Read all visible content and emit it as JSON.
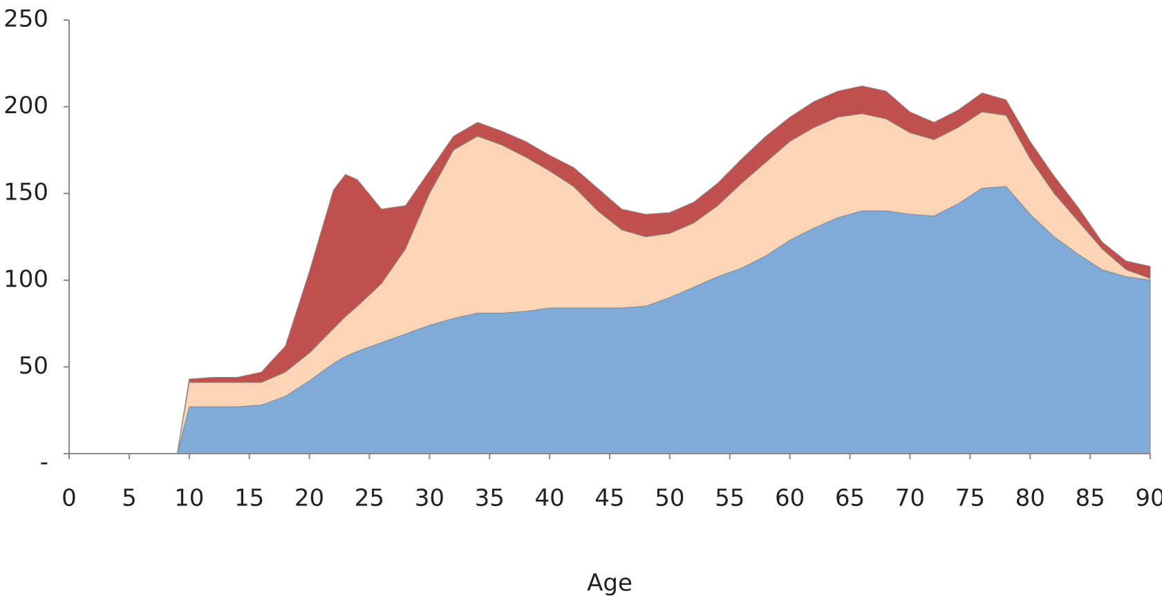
{
  "chart_data": {
    "type": "stacked_area",
    "x_label": "Age",
    "x": [
      0,
      9,
      10,
      12,
      14,
      16,
      18,
      20,
      22,
      23,
      24,
      26,
      28,
      30,
      32,
      34,
      36,
      38,
      40,
      42,
      44,
      46,
      48,
      50,
      52,
      54,
      56,
      58,
      60,
      62,
      64,
      66,
      68,
      70,
      72,
      74,
      76,
      78,
      80,
      82,
      84,
      86,
      88,
      90
    ],
    "series": [
      {
        "color": "#80aad8",
        "values": [
          0,
          0,
          27,
          27,
          27,
          28,
          33,
          42,
          52,
          56,
          59,
          64,
          69,
          74,
          78,
          81,
          81,
          82,
          84,
          84,
          84,
          84,
          85,
          90,
          96,
          102,
          107,
          114,
          123,
          130,
          136,
          140,
          140,
          138,
          137,
          144,
          153,
          154,
          138,
          125,
          115,
          106,
          102,
          100
        ]
      },
      {
        "color": "#fbd5b5",
        "values": [
          0,
          0,
          14,
          14,
          14,
          13,
          14,
          16,
          20,
          23,
          26,
          34,
          49,
          76,
          97,
          102,
          97,
          89,
          79,
          70,
          56,
          45,
          40,
          37,
          37,
          41,
          49,
          54,
          57,
          58,
          58,
          56,
          53,
          47,
          44,
          44,
          44,
          41,
          32,
          25,
          19,
          12,
          4,
          1
        ]
      },
      {
        "color": "#c0504d",
        "values": [
          0,
          0,
          2,
          3,
          3,
          6,
          15,
          47,
          80,
          82,
          73,
          43,
          25,
          13,
          8,
          8,
          8,
          9,
          9,
          11,
          13,
          12,
          13,
          12,
          12,
          13,
          14,
          15,
          14,
          15,
          15,
          16,
          16,
          12,
          10,
          10,
          11,
          9,
          10,
          10,
          8,
          4,
          5,
          7
        ]
      }
    ],
    "xlim": [
      0,
      90
    ],
    "xticks": [
      0,
      5,
      10,
      15,
      20,
      25,
      30,
      35,
      40,
      45,
      50,
      55,
      60,
      65,
      70,
      75,
      80,
      85,
      90
    ],
    "ylim": [
      0,
      250
    ],
    "yticks": [
      {
        "value": 0,
        "label": "-"
      },
      50,
      100,
      150,
      200,
      250
    ]
  }
}
